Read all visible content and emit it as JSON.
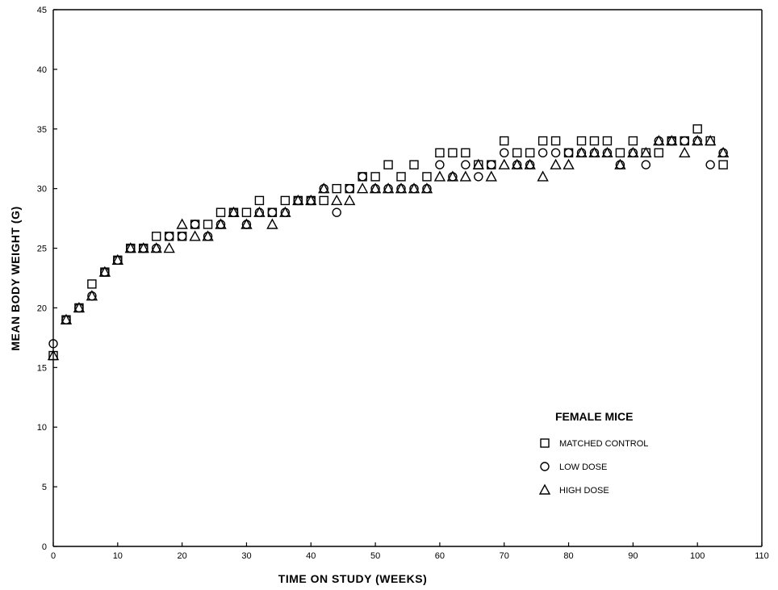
{
  "chart_data": {
    "type": "scatter",
    "xlabel": "TIME ON STUDY (WEEKS)",
    "ylabel": "MEAN BODY WEIGHT (G)",
    "xlim": [
      0,
      110
    ],
    "ylim": [
      0,
      45
    ],
    "xticks": [
      0,
      10,
      20,
      30,
      40,
      50,
      60,
      70,
      80,
      90,
      100,
      110
    ],
    "yticks": [
      0,
      5,
      10,
      15,
      20,
      25,
      30,
      35,
      40,
      45
    ],
    "grid": false,
    "legend": {
      "title": "FEMALE MICE",
      "placement": "lower-right"
    },
    "series": [
      {
        "name": "MATCHED CONTROL",
        "marker": "square",
        "x": [
          0,
          2,
          4,
          6,
          8,
          10,
          12,
          14,
          16,
          18,
          20,
          22,
          24,
          26,
          28,
          30,
          32,
          34,
          36,
          38,
          40,
          42,
          44,
          46,
          48,
          50,
          52,
          54,
          56,
          58,
          60,
          62,
          64,
          66,
          68,
          70,
          72,
          74,
          76,
          78,
          80,
          82,
          84,
          86,
          88,
          90,
          92,
          94,
          96,
          98,
          100,
          102,
          104
        ],
        "y": [
          16,
          19,
          20,
          22,
          23,
          24,
          25,
          25,
          26,
          26,
          26,
          27,
          27,
          28,
          28,
          28,
          29,
          28,
          29,
          29,
          29,
          29,
          30,
          30,
          31,
          31,
          32,
          31,
          32,
          31,
          33,
          33,
          33,
          32,
          32,
          34,
          33,
          33,
          34,
          34,
          33,
          34,
          34,
          34,
          33,
          34,
          33,
          33,
          34,
          34,
          35,
          34,
          32
        ]
      },
      {
        "name": "LOW DOSE",
        "marker": "circle",
        "x": [
          0,
          2,
          4,
          6,
          8,
          10,
          12,
          14,
          16,
          18,
          20,
          22,
          24,
          26,
          28,
          30,
          32,
          34,
          36,
          38,
          40,
          42,
          44,
          46,
          48,
          50,
          52,
          54,
          56,
          58,
          60,
          62,
          64,
          66,
          68,
          70,
          72,
          74,
          76,
          78,
          80,
          82,
          84,
          86,
          88,
          90,
          92,
          94,
          96,
          98,
          100,
          102,
          104
        ],
        "y": [
          17,
          19,
          20,
          21,
          23,
          24,
          25,
          25,
          25,
          26,
          26,
          27,
          26,
          27,
          28,
          27,
          28,
          28,
          28,
          29,
          29,
          30,
          28,
          30,
          31,
          30,
          30,
          30,
          30,
          30,
          32,
          31,
          32,
          31,
          32,
          33,
          32,
          32,
          33,
          33,
          33,
          33,
          33,
          33,
          32,
          33,
          32,
          34,
          34,
          34,
          34,
          32,
          33
        ]
      },
      {
        "name": "HIGH DOSE",
        "marker": "triangle",
        "x": [
          0,
          2,
          4,
          6,
          8,
          10,
          12,
          14,
          16,
          18,
          20,
          22,
          24,
          26,
          28,
          30,
          32,
          34,
          36,
          38,
          40,
          42,
          44,
          46,
          48,
          50,
          52,
          54,
          56,
          58,
          60,
          62,
          64,
          66,
          68,
          70,
          72,
          74,
          76,
          78,
          80,
          82,
          84,
          86,
          88,
          90,
          92,
          94,
          96,
          98,
          100,
          102,
          104
        ],
        "y": [
          16,
          19,
          20,
          21,
          23,
          24,
          25,
          25,
          25,
          25,
          27,
          26,
          26,
          27,
          28,
          27,
          28,
          27,
          28,
          29,
          29,
          30,
          29,
          29,
          30,
          30,
          30,
          30,
          30,
          30,
          31,
          31,
          31,
          32,
          31,
          32,
          32,
          32,
          31,
          32,
          32,
          33,
          33,
          33,
          32,
          33,
          33,
          34,
          34,
          33,
          34,
          34,
          33
        ]
      }
    ]
  }
}
